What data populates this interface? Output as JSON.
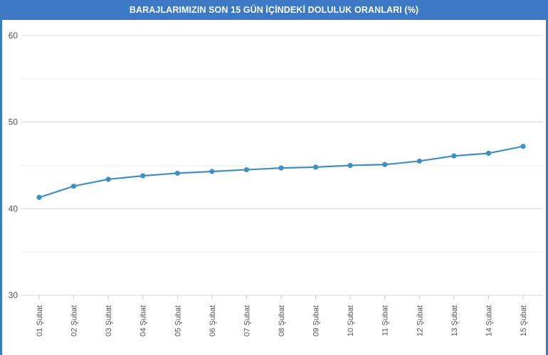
{
  "chart_data": {
    "type": "line",
    "title": "BARAJLARIMIZIN SON 15 GÜN İÇİNDEKİ DOLULUK ORANLARI (%)",
    "categories": [
      "01 Şubat",
      "02 Şubat",
      "03 Şubat",
      "04 Şubat",
      "05 Şubat",
      "06 Şubat",
      "07 Şubat",
      "08 Şubat",
      "09 Şubat",
      "10 Şubat",
      "11 Şubat",
      "12 Şubat",
      "13 Şubat",
      "14 Şubat",
      "15 Şubat"
    ],
    "series": [
      {
        "values": [
          41.3,
          42.6,
          43.4,
          43.8,
          44.1,
          44.3,
          44.5,
          44.7,
          44.8,
          45.0,
          45.1,
          45.5,
          46.1,
          46.4,
          47.2
        ]
      }
    ],
    "ylim": [
      30,
      60
    ],
    "yticks": [
      30,
      40,
      50,
      60
    ],
    "grid": true,
    "legend": "none",
    "colors": {
      "line": "#3f8fc0",
      "marker": "#3f8fc0",
      "title_bg": "#3d79c4",
      "grid": "#e3e3e3"
    }
  }
}
